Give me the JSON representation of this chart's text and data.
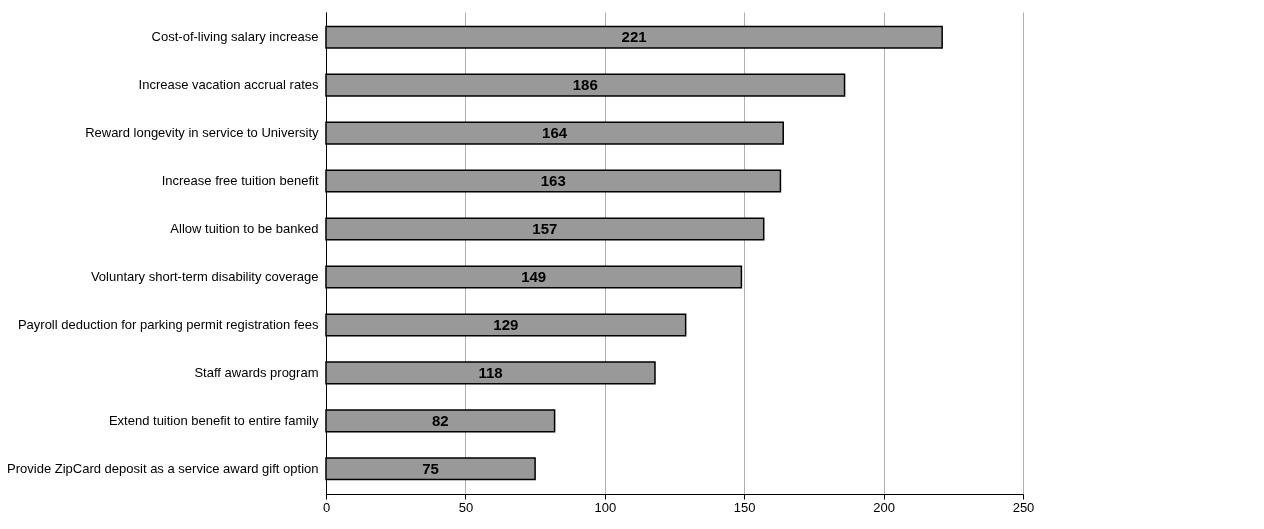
{
  "chart_data": {
    "type": "bar",
    "orientation": "horizontal",
    "categories": [
      "Cost-of-living salary increase",
      "Increase vacation accrual rates",
      "Reward longevity in service to University",
      "Increase free tuition benefit",
      "Allow tuition to be banked",
      "Voluntary short-term disability coverage",
      "Payroll deduction for parking permit registration fees",
      "Staff awards program",
      "Extend tuition benefit to entire family",
      "Provide ZipCard deposit as a service award gift option"
    ],
    "values": [
      221,
      186,
      164,
      163,
      157,
      149,
      129,
      118,
      82,
      75
    ],
    "color": "#999999",
    "data_labels": true,
    "grid": "x",
    "xlim": [
      0,
      250
    ],
    "xticks": [
      0,
      50,
      100,
      150,
      200,
      250
    ]
  }
}
